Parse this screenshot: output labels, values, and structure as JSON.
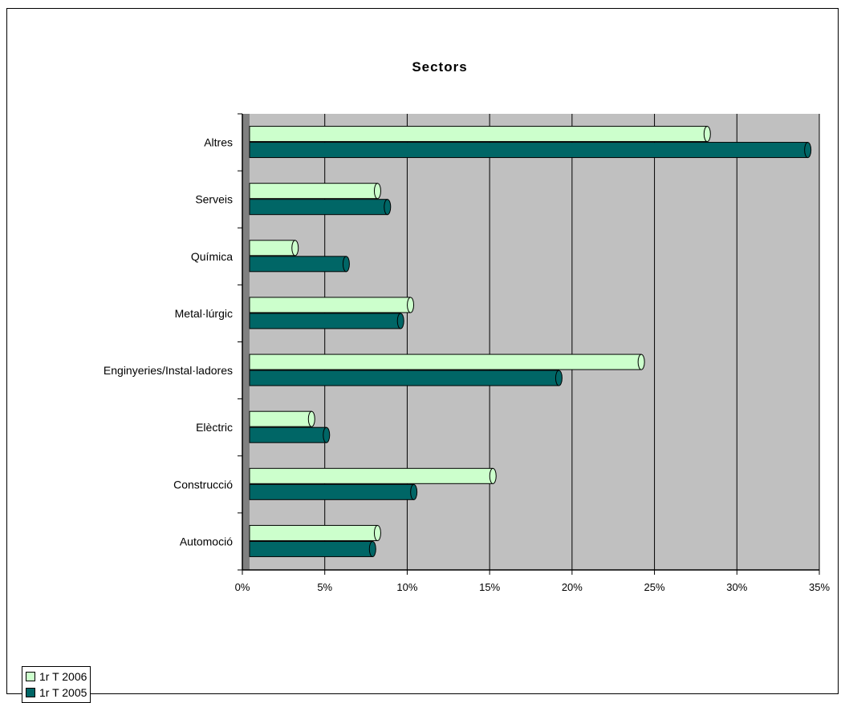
{
  "chart_data": {
    "type": "bar",
    "orientation": "horizontal",
    "title": "Sectors",
    "xlabel": "",
    "ylabel": "",
    "xlim": [
      0,
      35
    ],
    "x_ticks": [
      "0%",
      "5%",
      "10%",
      "15%",
      "20%",
      "25%",
      "30%",
      "35%"
    ],
    "grid": true,
    "legend_position": "bottom-left",
    "categories": [
      "Altres",
      "Serveis",
      "Química",
      "Metal·lúrgic",
      "Enginyeries/Instal·ladores",
      "Elèctric",
      "Construcció",
      "Automoció"
    ],
    "series": [
      {
        "name": "1r T 2006",
        "color": "#ccffcc",
        "values": [
          28.2,
          8.2,
          3.2,
          10.2,
          24.2,
          4.2,
          15.2,
          8.2
        ]
      },
      {
        "name": "1r T 2005",
        "color": "#006666",
        "values": [
          34.3,
          8.8,
          6.3,
          9.6,
          19.2,
          5.1,
          10.4,
          7.9
        ]
      }
    ]
  },
  "colors": {
    "plot_background": "#c0c0c0",
    "axis_wall": "#808080"
  }
}
